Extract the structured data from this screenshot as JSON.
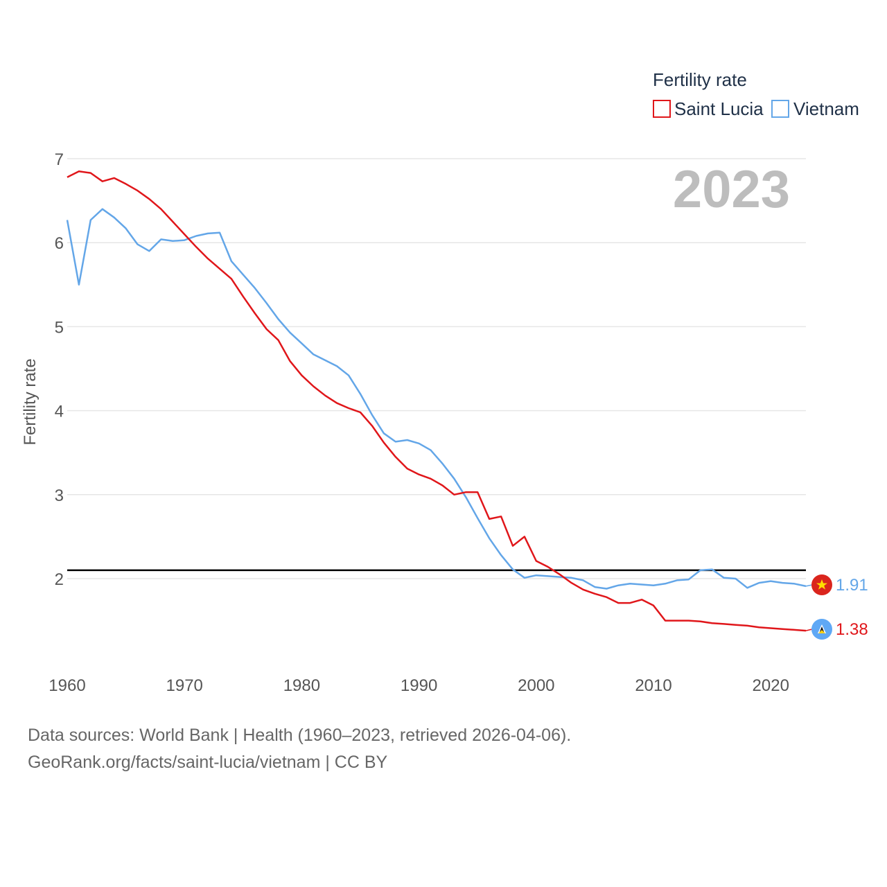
{
  "chart_data": {
    "type": "line",
    "legend_title": "Fertility rate",
    "ylabel": "Fertility rate",
    "xlabel": "",
    "year_display": "2023",
    "xlim": [
      1960,
      2023
    ],
    "ylim": [
      1,
      7
    ],
    "x_ticks": [
      1960,
      1970,
      1980,
      1990,
      2000,
      2010,
      2020
    ],
    "y_ticks": [
      2,
      3,
      4,
      5,
      6,
      7
    ],
    "reference_line": {
      "value": 2.1,
      "color": "#000000"
    },
    "legend_position": "top-right",
    "series": [
      {
        "name": "Saint Lucia",
        "color": "#e0161a",
        "end_label": "1.38",
        "flag_icon": "saint-lucia-flag-icon",
        "x": [
          1960,
          1961,
          1962,
          1963,
          1964,
          1965,
          1966,
          1967,
          1968,
          1969,
          1970,
          1971,
          1972,
          1973,
          1974,
          1975,
          1976,
          1977,
          1978,
          1979,
          1980,
          1981,
          1982,
          1983,
          1984,
          1985,
          1986,
          1987,
          1988,
          1989,
          1990,
          1991,
          1992,
          1993,
          1994,
          1995,
          1996,
          1997,
          1998,
          1999,
          2000,
          2001,
          2002,
          2003,
          2004,
          2005,
          2006,
          2007,
          2008,
          2009,
          2010,
          2011,
          2012,
          2013,
          2014,
          2015,
          2016,
          2017,
          2018,
          2019,
          2020,
          2021,
          2022,
          2023
        ],
        "values": [
          6.78,
          6.85,
          6.83,
          6.73,
          6.77,
          6.7,
          6.62,
          6.52,
          6.4,
          6.25,
          6.1,
          5.95,
          5.81,
          5.69,
          5.57,
          5.36,
          5.16,
          4.97,
          4.84,
          4.59,
          4.42,
          4.29,
          4.18,
          4.09,
          4.03,
          3.98,
          3.82,
          3.62,
          3.45,
          3.31,
          3.24,
          3.19,
          3.11,
          3.0,
          3.03,
          3.03,
          2.71,
          2.74,
          2.39,
          2.5,
          2.21,
          2.14,
          2.05,
          1.95,
          1.87,
          1.82,
          1.78,
          1.71,
          1.71,
          1.75,
          1.68,
          1.5,
          1.5,
          1.5,
          1.49,
          1.47,
          1.46,
          1.45,
          1.44,
          1.42,
          1.41,
          1.4,
          1.39,
          1.38
        ]
      },
      {
        "name": "Vietnam",
        "color": "#63a6e8",
        "end_label": "1.91",
        "flag_icon": "vietnam-flag-icon",
        "x": [
          1960,
          1961,
          1962,
          1963,
          1964,
          1965,
          1966,
          1967,
          1968,
          1969,
          1970,
          1971,
          1972,
          1973,
          1974,
          1975,
          1976,
          1977,
          1978,
          1979,
          1980,
          1981,
          1982,
          1983,
          1984,
          1985,
          1986,
          1987,
          1988,
          1989,
          1990,
          1991,
          1992,
          1993,
          1994,
          1995,
          1996,
          1997,
          1998,
          1999,
          2000,
          2001,
          2002,
          2003,
          2004,
          2005,
          2006,
          2007,
          2008,
          2009,
          2010,
          2011,
          2012,
          2013,
          2014,
          2015,
          2016,
          2017,
          2018,
          2019,
          2020,
          2021,
          2022,
          2023
        ],
        "values": [
          6.27,
          5.5,
          6.27,
          6.4,
          6.3,
          6.17,
          5.98,
          5.9,
          6.04,
          6.02,
          6.03,
          6.08,
          6.11,
          6.12,
          5.78,
          5.62,
          5.46,
          5.28,
          5.09,
          4.93,
          4.8,
          4.67,
          4.6,
          4.53,
          4.42,
          4.2,
          3.95,
          3.73,
          3.63,
          3.65,
          3.61,
          3.53,
          3.37,
          3.19,
          2.97,
          2.72,
          2.48,
          2.28,
          2.11,
          2.01,
          2.04,
          2.03,
          2.02,
          2.01,
          1.98,
          1.9,
          1.88,
          1.92,
          1.94,
          1.93,
          1.92,
          1.94,
          1.98,
          1.99,
          2.1,
          2.11,
          2.01,
          2.0,
          1.89,
          1.95,
          1.97,
          1.95,
          1.94,
          1.91
        ]
      }
    ]
  },
  "footer": {
    "line1": "Data sources: World Bank | Health (1960–2023, retrieved 2026-04-06).",
    "line2": "GeoRank.org/facts/saint-lucia/vietnam | CC BY"
  }
}
